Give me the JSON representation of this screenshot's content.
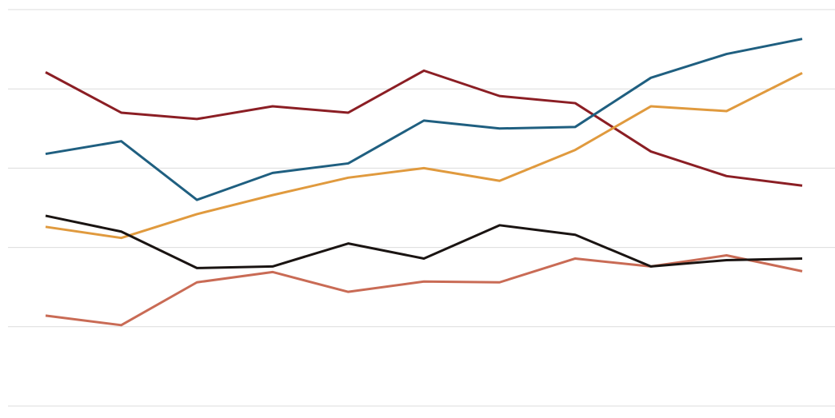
{
  "chart_data": {
    "type": "line",
    "categories": [
      null,
      null,
      null,
      null,
      null,
      null,
      null,
      null,
      null,
      null,
      null
    ],
    "series": [
      {
        "color": "#8b1e24",
        "values": [
          4.21,
          3.7,
          3.62,
          3.78,
          3.7,
          4.23,
          3.91,
          3.82,
          3.21,
          2.9,
          2.78
        ]
      },
      {
        "color": "#1f5f80",
        "values": [
          3.18,
          3.34,
          2.6,
          2.94,
          3.06,
          3.6,
          3.5,
          3.52,
          4.14,
          4.44,
          4.63
        ]
      },
      {
        "color": "#e09a3e",
        "values": [
          2.26,
          2.12,
          2.42,
          2.66,
          2.88,
          3.0,
          2.84,
          3.23,
          3.78,
          3.72,
          4.2
        ]
      },
      {
        "color": "#c96b55",
        "values": [
          1.14,
          1.02,
          1.56,
          1.69,
          1.44,
          1.57,
          1.56,
          1.86,
          1.76,
          1.9,
          1.7
        ]
      },
      {
        "color": "#1a1412",
        "values": [
          2.4,
          2.2,
          1.74,
          1.76,
          2.05,
          1.86,
          2.28,
          2.16,
          1.76,
          1.84,
          1.86
        ]
      }
    ],
    "ylim": [
      0,
      5
    ],
    "yticks": [
      0,
      1,
      2,
      3,
      4,
      5
    ],
    "grid": true
  }
}
